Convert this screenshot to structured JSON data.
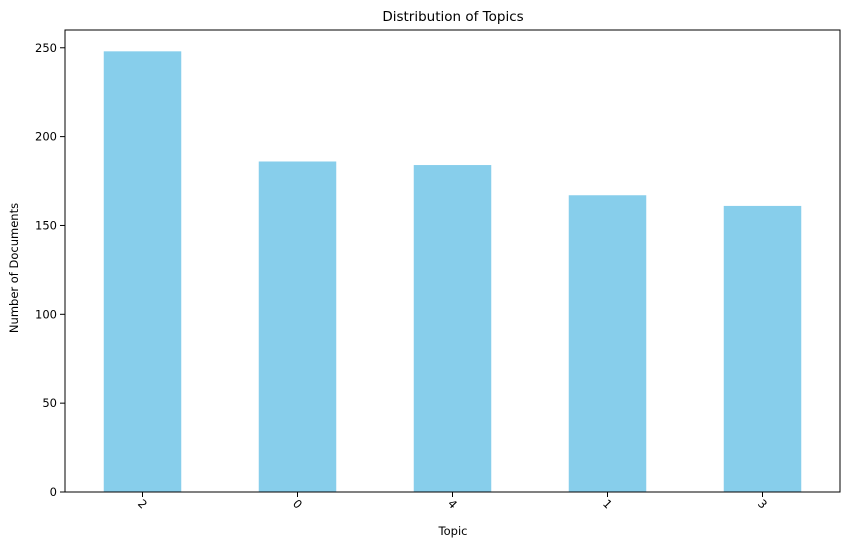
{
  "chart_data": {
    "type": "bar",
    "title": "Distribution of Topics",
    "xlabel": "Topic",
    "ylabel": "Number of Documents",
    "categories": [
      "2",
      "0",
      "4",
      "1",
      "3"
    ],
    "values": [
      248,
      186,
      184,
      167,
      161
    ],
    "ylim": [
      0,
      260
    ],
    "yticks": [
      0,
      50,
      100,
      150,
      200,
      250
    ],
    "xtick_rotation": 45,
    "bar_color": "#87ceeb",
    "grid": false,
    "legend": "none"
  }
}
